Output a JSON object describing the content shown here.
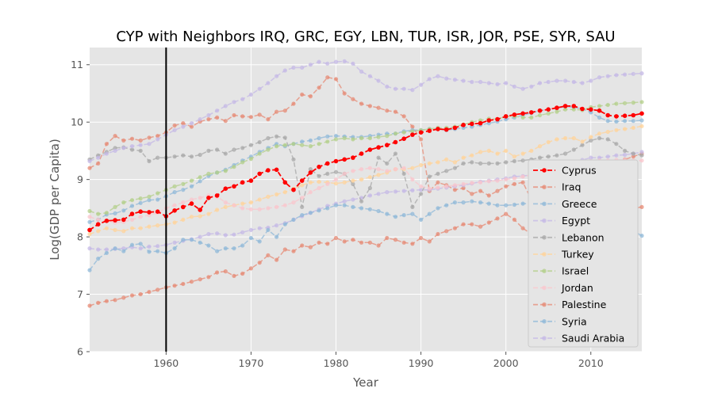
{
  "chart_data": {
    "type": "line",
    "title": "CYP with Neighbors IRQ, GRC, EGY, LBN, TUR, ISR, JOR, PSE, SYR, SAU",
    "xlabel": "Year",
    "ylabel": "Log(GDP per Capita)",
    "xlim": [
      1951,
      2016
    ],
    "ylim": [
      6,
      11.3
    ],
    "x_ticks": [
      1960,
      1970,
      1980,
      1990,
      2000,
      2010
    ],
    "y_ticks": [
      6,
      7,
      8,
      9,
      10,
      11
    ],
    "grid": true,
    "legend_position": "lower-right",
    "vline": 1960,
    "x": [
      1951,
      1952,
      1953,
      1954,
      1955,
      1956,
      1957,
      1958,
      1959,
      1960,
      1961,
      1962,
      1963,
      1964,
      1965,
      1966,
      1967,
      1968,
      1969,
      1970,
      1971,
      1972,
      1973,
      1974,
      1975,
      1976,
      1977,
      1978,
      1979,
      1980,
      1981,
      1982,
      1983,
      1984,
      1985,
      1986,
      1987,
      1988,
      1989,
      1990,
      1991,
      1992,
      1993,
      1994,
      1995,
      1996,
      1997,
      1998,
      1999,
      2000,
      2001,
      2002,
      2003,
      2004,
      2005,
      2006,
      2007,
      2008,
      2009,
      2010,
      2011,
      2012,
      2013,
      2014,
      2015,
      2016
    ],
    "series": [
      {
        "name": "Cyprus",
        "color": "#ff0000",
        "values": [
          8.12,
          8.22,
          8.28,
          8.29,
          8.3,
          8.4,
          8.44,
          8.43,
          8.44,
          8.36,
          8.46,
          8.52,
          8.58,
          8.47,
          8.68,
          8.72,
          8.84,
          8.88,
          8.95,
          8.98,
          9.1,
          9.16,
          9.17,
          8.95,
          8.82,
          8.98,
          9.12,
          9.22,
          9.28,
          9.32,
          9.35,
          9.38,
          9.45,
          9.52,
          9.56,
          9.6,
          9.65,
          9.71,
          9.78,
          9.82,
          9.85,
          9.88,
          9.87,
          9.9,
          9.95,
          9.97,
          9.98,
          10.03,
          10.05,
          10.1,
          10.13,
          10.15,
          10.17,
          10.2,
          10.22,
          10.25,
          10.28,
          10.28,
          10.23,
          10.22,
          10.2,
          10.12,
          10.1,
          10.11,
          10.12,
          10.15
        ]
      },
      {
        "name": "Iraq",
        "color": "#e58a74",
        "values": [
          9.2,
          9.28,
          9.62,
          9.76,
          9.68,
          9.71,
          9.68,
          9.73,
          9.76,
          9.82,
          9.94,
          9.98,
          9.92,
          10.01,
          10.05,
          10.08,
          10.02,
          10.12,
          10.1,
          10.09,
          10.13,
          10.05,
          10.18,
          10.2,
          10.32,
          10.48,
          10.45,
          10.6,
          10.78,
          10.75,
          10.5,
          10.4,
          10.32,
          10.28,
          10.25,
          10.2,
          10.18,
          10.1,
          9.92,
          9.7,
          8.8,
          8.95,
          8.9,
          8.82,
          8.85,
          8.75,
          8.8,
          8.72,
          8.8,
          8.88,
          8.92,
          8.95,
          8.65,
          8.8,
          8.9,
          8.95,
          9.02,
          9.05,
          9.1,
          9.12,
          9.18,
          9.22,
          9.28,
          9.35,
          9.4,
          9.45
        ]
      },
      {
        "name": "Greece",
        "color": "#8fb8d8",
        "values": [
          8.26,
          8.3,
          8.39,
          8.41,
          8.46,
          8.54,
          8.59,
          8.64,
          8.65,
          8.71,
          8.78,
          8.82,
          8.88,
          8.97,
          9.06,
          9.12,
          9.17,
          9.25,
          9.33,
          9.4,
          9.48,
          9.55,
          9.62,
          9.58,
          9.62,
          9.66,
          9.68,
          9.72,
          9.75,
          9.76,
          9.75,
          9.74,
          9.74,
          9.76,
          9.78,
          9.8,
          9.8,
          9.84,
          9.86,
          9.86,
          9.88,
          9.88,
          9.86,
          9.88,
          9.9,
          9.92,
          9.95,
          9.98,
          10.01,
          10.05,
          10.08,
          10.12,
          10.16,
          10.2,
          10.22,
          10.24,
          10.27,
          10.26,
          10.23,
          10.17,
          10.08,
          10.02,
          10.01,
          10.02,
          10.02,
          10.03
        ]
      },
      {
        "name": "Egypt",
        "color": "#c4b8e6",
        "values": [
          7.8,
          7.78,
          7.78,
          7.79,
          7.8,
          7.82,
          7.8,
          7.83,
          7.84,
          7.86,
          7.9,
          7.93,
          7.96,
          8.0,
          8.05,
          8.06,
          8.03,
          8.04,
          8.08,
          8.12,
          8.15,
          8.16,
          8.2,
          8.24,
          8.3,
          8.36,
          8.42,
          8.48,
          8.54,
          8.58,
          8.62,
          8.65,
          8.68,
          8.72,
          8.75,
          8.78,
          8.79,
          8.8,
          8.81,
          8.82,
          8.82,
          8.84,
          8.86,
          8.88,
          8.9,
          8.93,
          8.96,
          8.98,
          9.0,
          9.02,
          9.05,
          9.06,
          9.08,
          9.1,
          9.14,
          9.18,
          9.24,
          9.3,
          9.34,
          9.38,
          9.38,
          9.4,
          9.42,
          9.43,
          9.45,
          9.48
        ]
      },
      {
        "name": "Lebanon",
        "color": "#a8a8a8",
        "values": [
          9.35,
          9.42,
          9.48,
          9.55,
          9.56,
          9.52,
          9.5,
          9.32,
          9.38,
          9.38,
          9.4,
          9.42,
          9.4,
          9.43,
          9.5,
          9.52,
          9.45,
          9.52,
          9.55,
          9.6,
          9.65,
          9.72,
          9.75,
          9.73,
          9.35,
          8.52,
          9.18,
          9.06,
          9.1,
          9.13,
          9.1,
          8.92,
          8.62,
          8.85,
          9.38,
          9.28,
          9.45,
          9.1,
          8.52,
          8.75,
          9.05,
          9.1,
          9.15,
          9.2,
          9.28,
          9.3,
          9.28,
          9.28,
          9.28,
          9.3,
          9.32,
          9.33,
          9.35,
          9.38,
          9.4,
          9.42,
          9.45,
          9.52,
          9.6,
          9.68,
          9.72,
          9.7,
          9.62,
          9.5,
          9.45,
          9.42
        ]
      },
      {
        "name": "Turkey",
        "color": "#ffd39a",
        "values": [
          8.05,
          8.1,
          8.15,
          8.12,
          8.1,
          8.15,
          8.15,
          8.18,
          8.2,
          8.22,
          8.25,
          8.3,
          8.35,
          8.36,
          8.4,
          8.47,
          8.52,
          8.55,
          8.58,
          8.6,
          8.65,
          8.7,
          8.74,
          8.78,
          8.84,
          8.9,
          8.95,
          8.96,
          8.95,
          8.93,
          8.95,
          8.98,
          9.0,
          9.04,
          9.08,
          9.12,
          9.18,
          9.18,
          9.2,
          9.25,
          9.28,
          9.3,
          9.35,
          9.3,
          9.38,
          9.42,
          9.48,
          9.5,
          9.45,
          9.5,
          9.4,
          9.45,
          9.5,
          9.58,
          9.65,
          9.7,
          9.72,
          9.72,
          9.66,
          9.74,
          9.8,
          9.83,
          9.86,
          9.88,
          9.9,
          9.93
        ]
      },
      {
        "name": "Israel",
        "color": "#b3cf8a",
        "values": [
          8.45,
          8.4,
          8.42,
          8.52,
          8.6,
          8.64,
          8.67,
          8.7,
          8.76,
          8.82,
          8.88,
          8.92,
          8.98,
          9.04,
          9.1,
          9.12,
          9.15,
          9.22,
          9.3,
          9.36,
          9.45,
          9.52,
          9.58,
          9.6,
          9.62,
          9.6,
          9.58,
          9.62,
          9.66,
          9.7,
          9.72,
          9.7,
          9.72,
          9.72,
          9.74,
          9.76,
          9.8,
          9.82,
          9.84,
          9.86,
          9.88,
          9.9,
          9.9,
          9.92,
          9.96,
          10.0,
          10.03,
          10.06,
          10.05,
          10.1,
          10.1,
          10.08,
          10.08,
          10.12,
          10.15,
          10.18,
          10.22,
          10.22,
          10.21,
          10.26,
          10.28,
          10.3,
          10.32,
          10.33,
          10.34,
          10.35
        ]
      },
      {
        "name": "Jordan",
        "color": "#f9c6cc",
        "values": [
          8.35,
          8.3,
          8.28,
          8.25,
          8.26,
          8.3,
          8.35,
          8.38,
          8.42,
          8.5,
          8.55,
          8.6,
          8.65,
          8.68,
          8.72,
          8.7,
          8.6,
          8.55,
          8.5,
          8.48,
          8.48,
          8.5,
          8.52,
          8.55,
          8.6,
          8.68,
          8.78,
          8.85,
          8.92,
          9.0,
          9.1,
          9.15,
          9.18,
          9.2,
          9.18,
          9.15,
          9.18,
          9.2,
          9.0,
          8.88,
          8.84,
          8.86,
          8.88,
          8.9,
          8.92,
          8.94,
          8.95,
          8.97,
          8.98,
          9.0,
          9.02,
          9.05,
          9.08,
          9.12,
          9.15,
          9.2,
          9.24,
          9.28,
          9.3,
          9.32,
          9.33,
          9.33,
          9.34,
          9.34,
          9.33,
          9.33
        ]
      },
      {
        "name": "Palestine",
        "color": "#e58a74",
        "values": [
          6.8,
          6.85,
          6.88,
          6.9,
          6.94,
          6.98,
          7.0,
          7.04,
          7.08,
          7.12,
          7.15,
          7.18,
          7.22,
          7.26,
          7.3,
          7.38,
          7.4,
          7.32,
          7.36,
          7.45,
          7.55,
          7.68,
          7.6,
          7.78,
          7.75,
          7.85,
          7.82,
          7.9,
          7.88,
          7.98,
          7.92,
          7.95,
          7.9,
          7.9,
          7.85,
          7.98,
          7.95,
          7.9,
          7.88,
          7.98,
          7.92,
          8.05,
          8.1,
          8.15,
          8.22,
          8.22,
          8.18,
          8.25,
          8.32,
          8.4,
          8.3,
          8.15,
          8.05,
          8.2,
          8.25,
          8.3,
          8.33,
          8.38,
          8.42,
          8.45,
          8.48,
          8.5,
          8.52,
          8.5,
          8.5,
          8.52
        ]
      },
      {
        "name": "Syria",
        "color": "#8fb8d8",
        "values": [
          7.42,
          7.62,
          7.72,
          7.8,
          7.75,
          7.86,
          7.88,
          7.74,
          7.75,
          7.72,
          7.8,
          7.95,
          7.95,
          7.9,
          7.85,
          7.75,
          7.8,
          7.8,
          7.85,
          7.98,
          7.92,
          8.12,
          8.0,
          8.22,
          8.3,
          8.38,
          8.42,
          8.46,
          8.5,
          8.55,
          8.55,
          8.52,
          8.5,
          8.48,
          8.45,
          8.4,
          8.35,
          8.38,
          8.4,
          8.3,
          8.4,
          8.5,
          8.55,
          8.6,
          8.6,
          8.62,
          8.6,
          8.58,
          8.55,
          8.55,
          8.56,
          8.58,
          8.58,
          8.62,
          8.65,
          8.68,
          8.72,
          8.75,
          8.75,
          8.8,
          8.75,
          8.6,
          8.4,
          8.25,
          8.1,
          8.02
        ]
      },
      {
        "name": "Saudi Arabia",
        "color": "#c4b8e6",
        "values": [
          9.32,
          9.38,
          9.45,
          9.5,
          9.55,
          9.58,
          9.6,
          9.62,
          9.7,
          9.78,
          9.86,
          9.92,
          9.98,
          10.05,
          10.12,
          10.2,
          10.28,
          10.35,
          10.4,
          10.48,
          10.58,
          10.68,
          10.8,
          10.9,
          10.95,
          10.95,
          11.0,
          11.05,
          11.02,
          11.05,
          11.06,
          11.02,
          10.88,
          10.8,
          10.72,
          10.62,
          10.58,
          10.58,
          10.56,
          10.65,
          10.75,
          10.8,
          10.76,
          10.74,
          10.72,
          10.7,
          10.7,
          10.68,
          10.66,
          10.68,
          10.62,
          10.58,
          10.62,
          10.68,
          10.7,
          10.72,
          10.72,
          10.7,
          10.68,
          10.72,
          10.78,
          10.8,
          10.82,
          10.83,
          10.84,
          10.85
        ]
      }
    ]
  }
}
